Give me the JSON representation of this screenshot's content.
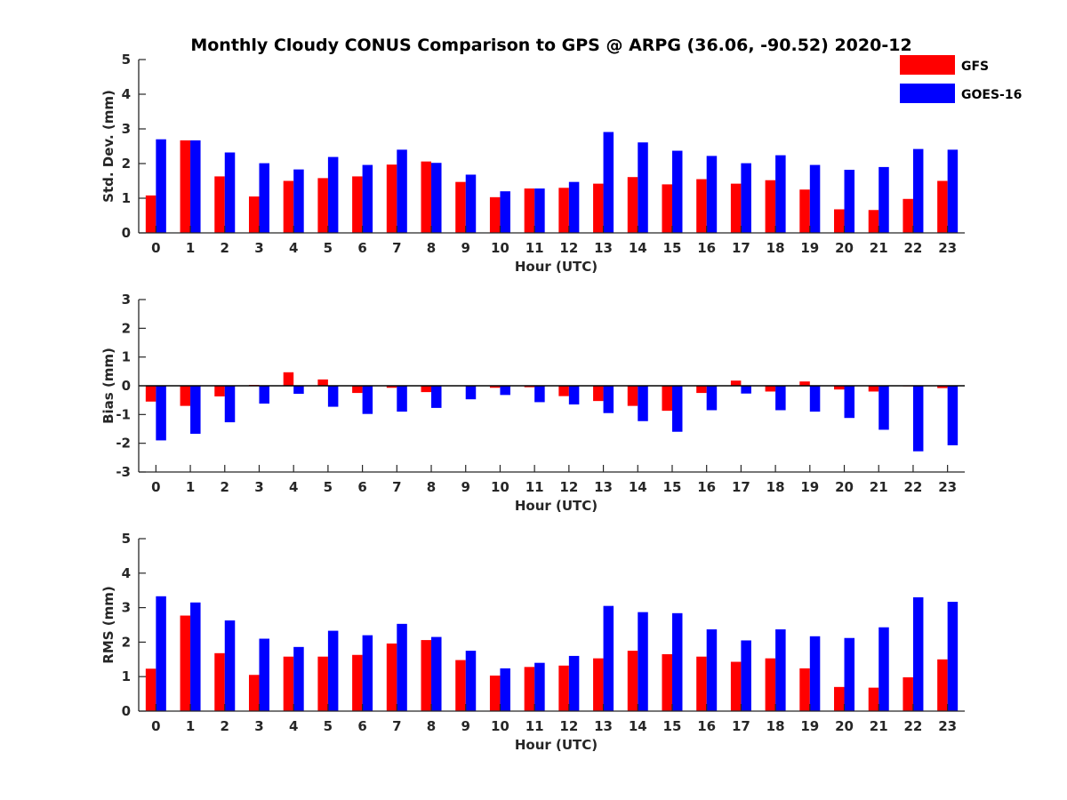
{
  "figure": {
    "title": "Monthly Cloudy CONUS Comparison to GPS @ ARPG (36.06, -90.52) 2020-12"
  },
  "legend": {
    "placement": "top-right",
    "items": [
      {
        "label": "GFS",
        "color": "#ff0000"
      },
      {
        "label": "GOES-16",
        "color": "#0000ff"
      }
    ]
  },
  "chart_data": [
    {
      "type": "bar",
      "categories": [
        "0",
        "1",
        "2",
        "3",
        "4",
        "5",
        "6",
        "7",
        "8",
        "9",
        "10",
        "11",
        "12",
        "13",
        "14",
        "15",
        "16",
        "17",
        "18",
        "19",
        "20",
        "21",
        "22",
        "23"
      ],
      "xlabel": "Hour (UTC)",
      "ylabel": "Std. Dev. (mm)",
      "ylim": [
        0,
        5
      ],
      "yticks": [
        "0",
        "1",
        "2",
        "3",
        "4",
        "5"
      ],
      "series": [
        {
          "name": "GFS",
          "color": "#ff0000",
          "values": [
            1.08,
            2.67,
            1.63,
            1.05,
            1.5,
            1.58,
            1.63,
            1.97,
            2.06,
            1.47,
            1.03,
            1.28,
            1.3,
            1.42,
            1.61,
            1.4,
            1.55,
            1.42,
            1.52,
            1.25,
            0.68,
            0.66,
            0.98,
            1.5
          ]
        },
        {
          "name": "GOES-16",
          "color": "#0000ff",
          "values": [
            2.7,
            2.67,
            2.32,
            2.01,
            1.83,
            2.19,
            1.96,
            2.4,
            2.02,
            1.68,
            1.2,
            1.28,
            1.47,
            2.91,
            2.61,
            2.37,
            2.22,
            2.01,
            2.24,
            1.96,
            1.82,
            1.9,
            2.42,
            2.4
          ]
        }
      ]
    },
    {
      "type": "bar",
      "categories": [
        "0",
        "1",
        "2",
        "3",
        "4",
        "5",
        "6",
        "7",
        "8",
        "9",
        "10",
        "11",
        "12",
        "13",
        "14",
        "15",
        "16",
        "17",
        "18",
        "19",
        "20",
        "21",
        "22",
        "23"
      ],
      "xlabel": "Hour (UTC)",
      "ylabel": "Bias (mm)",
      "ylim": [
        -3,
        3
      ],
      "yticks": [
        "-3",
        "-2",
        "-1",
        "0",
        "1",
        "2",
        "3"
      ],
      "series": [
        {
          "name": "GFS",
          "color": "#ff0000",
          "values": [
            -0.55,
            -0.7,
            -0.37,
            0.03,
            0.47,
            0.22,
            -0.25,
            -0.07,
            -0.22,
            0.0,
            -0.07,
            -0.05,
            -0.36,
            -0.53,
            -0.7,
            -0.87,
            -0.25,
            0.18,
            -0.2,
            0.15,
            -0.13,
            -0.2,
            -0.02,
            -0.08
          ]
        },
        {
          "name": "GOES-16",
          "color": "#0000ff",
          "values": [
            -1.9,
            -1.67,
            -1.27,
            -0.62,
            -0.28,
            -0.73,
            -0.98,
            -0.9,
            -0.77,
            -0.47,
            -0.32,
            -0.57,
            -0.65,
            -0.95,
            -1.23,
            -1.6,
            -0.85,
            -0.27,
            -0.85,
            -0.9,
            -1.12,
            -1.53,
            -2.28,
            -2.07
          ]
        }
      ]
    },
    {
      "type": "bar",
      "categories": [
        "0",
        "1",
        "2",
        "3",
        "4",
        "5",
        "6",
        "7",
        "8",
        "9",
        "10",
        "11",
        "12",
        "13",
        "14",
        "15",
        "16",
        "17",
        "18",
        "19",
        "20",
        "21",
        "22",
        "23"
      ],
      "xlabel": "Hour (UTC)",
      "ylabel": "RMS (mm)",
      "ylim": [
        0,
        5
      ],
      "yticks": [
        "0",
        "1",
        "2",
        "3",
        "4",
        "5"
      ],
      "series": [
        {
          "name": "GFS",
          "color": "#ff0000",
          "values": [
            1.23,
            2.77,
            1.68,
            1.05,
            1.58,
            1.58,
            1.63,
            1.96,
            2.06,
            1.48,
            1.03,
            1.28,
            1.32,
            1.53,
            1.75,
            1.65,
            1.58,
            1.43,
            1.53,
            1.24,
            0.7,
            0.68,
            0.98,
            1.5
          ]
        },
        {
          "name": "GOES-16",
          "color": "#0000ff",
          "values": [
            3.33,
            3.15,
            2.63,
            2.1,
            1.86,
            2.33,
            2.2,
            2.53,
            2.15,
            1.75,
            1.24,
            1.4,
            1.6,
            3.05,
            2.87,
            2.84,
            2.37,
            2.05,
            2.37,
            2.17,
            2.12,
            2.43,
            3.3,
            3.17
          ]
        }
      ]
    }
  ]
}
